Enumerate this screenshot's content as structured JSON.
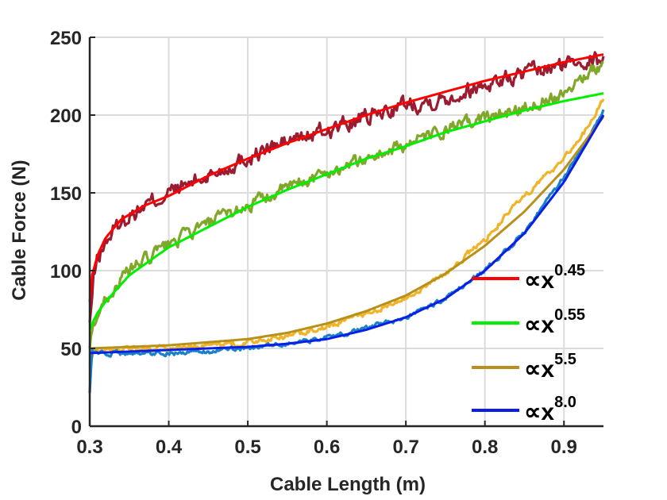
{
  "chart_data": {
    "type": "line",
    "xlabel": "Cable Length (m)",
    "ylabel": "Cable Force (N)",
    "xlim": [
      0.3,
      0.95
    ],
    "ylim": [
      0,
      250
    ],
    "xticks": [
      "0.3",
      "0.4",
      "0.5",
      "0.6",
      "0.7",
      "0.8",
      "0.9"
    ],
    "yticks": [
      "0",
      "50",
      "100",
      "150",
      "200",
      "250"
    ],
    "grid": true,
    "legend_position": "bottom-right",
    "legend": [
      {
        "prefix": "∝x",
        "exponent": "0.45",
        "color": "#ff0000"
      },
      {
        "prefix": "∝x",
        "exponent": "0.55",
        "color": "#00ee00"
      },
      {
        "prefix": "∝x",
        "exponent": "5.5",
        "color": "#b8901c"
      },
      {
        "prefix": "∝x",
        "exponent": "8.0",
        "color": "#0a1ee6"
      }
    ],
    "series": [
      {
        "color": "#9b1b30",
        "role": "measured",
        "noise": 4.5,
        "x": [
          0.3,
          0.305,
          0.31,
          0.32,
          0.33,
          0.35,
          0.4,
          0.45,
          0.5,
          0.55,
          0.6,
          0.65,
          0.7,
          0.75,
          0.8,
          0.85,
          0.9,
          0.92,
          0.95
        ],
        "y": [
          65,
          95,
          108,
          118,
          126,
          136,
          150,
          161,
          173,
          183,
          190,
          198,
          207,
          211,
          220,
          226,
          232,
          237,
          235
        ]
      },
      {
        "color": "#7fa82a",
        "role": "measured",
        "noise": 3.5,
        "x": [
          0.3,
          0.305,
          0.31,
          0.32,
          0.35,
          0.4,
          0.45,
          0.5,
          0.55,
          0.6,
          0.65,
          0.7,
          0.75,
          0.8,
          0.85,
          0.9,
          0.93,
          0.95
        ],
        "y": [
          50,
          65,
          72,
          82,
          100,
          117,
          130,
          142,
          153,
          163,
          172,
          181,
          190,
          198,
          205,
          215,
          228,
          232
        ]
      },
      {
        "color": "#f0b428",
        "role": "measured",
        "noise": 1.5,
        "x": [
          0.3,
          0.305,
          0.32,
          0.35,
          0.4,
          0.45,
          0.5,
          0.55,
          0.6,
          0.65,
          0.7,
          0.75,
          0.8,
          0.85,
          0.9,
          0.93,
          0.95
        ],
        "y": [
          40,
          49,
          50,
          50,
          50,
          51,
          54,
          58,
          64,
          72,
          83,
          98,
          120,
          148,
          172,
          192,
          210
        ]
      },
      {
        "color": "#1a80c8",
        "role": "measured",
        "noise": 1.2,
        "x": [
          0.3,
          0.303,
          0.32,
          0.35,
          0.4,
          0.45,
          0.5,
          0.55,
          0.6,
          0.65,
          0.7,
          0.75,
          0.8,
          0.85,
          0.9,
          0.95
        ],
        "y": [
          22,
          48,
          47,
          47,
          47,
          48,
          50,
          53,
          57,
          63,
          70,
          82,
          100,
          125,
          160,
          203
        ]
      },
      {
        "color": "#ff0000",
        "role": "fit",
        "x": [
          0.3,
          0.303,
          0.31,
          0.32,
          0.34,
          0.37,
          0.4,
          0.45,
          0.5,
          0.55,
          0.6,
          0.65,
          0.7,
          0.75,
          0.8,
          0.85,
          0.9,
          0.95
        ],
        "y": [
          80,
          97,
          110,
          121,
          133,
          142,
          148,
          161,
          172,
          182,
          191,
          200,
          208,
          215,
          222,
          228,
          234,
          239
        ]
      },
      {
        "color": "#00ee00",
        "role": "fit",
        "x": [
          0.3,
          0.303,
          0.31,
          0.32,
          0.35,
          0.4,
          0.45,
          0.5,
          0.55,
          0.6,
          0.65,
          0.7,
          0.75,
          0.8,
          0.85,
          0.9,
          0.95
        ],
        "y": [
          62,
          66,
          73,
          80,
          97,
          115,
          128,
          141,
          152,
          162,
          172,
          180,
          189,
          196,
          203,
          209,
          214
        ]
      },
      {
        "color": "#b8901c",
        "role": "fit",
        "x": [
          0.3,
          0.35,
          0.4,
          0.45,
          0.5,
          0.55,
          0.6,
          0.65,
          0.7,
          0.75,
          0.8,
          0.85,
          0.9,
          0.95
        ],
        "y": [
          50,
          51,
          52,
          54,
          56,
          60,
          66,
          74,
          84,
          98,
          116,
          138,
          165,
          199
        ]
      },
      {
        "color": "#0a1ee6",
        "role": "fit",
        "x": [
          0.3,
          0.35,
          0.4,
          0.45,
          0.5,
          0.55,
          0.6,
          0.65,
          0.7,
          0.75,
          0.8,
          0.85,
          0.9,
          0.95
        ],
        "y": [
          47,
          48,
          49,
          50,
          51,
          53,
          56,
          62,
          70,
          82,
          100,
          124,
          157,
          200
        ]
      }
    ]
  }
}
